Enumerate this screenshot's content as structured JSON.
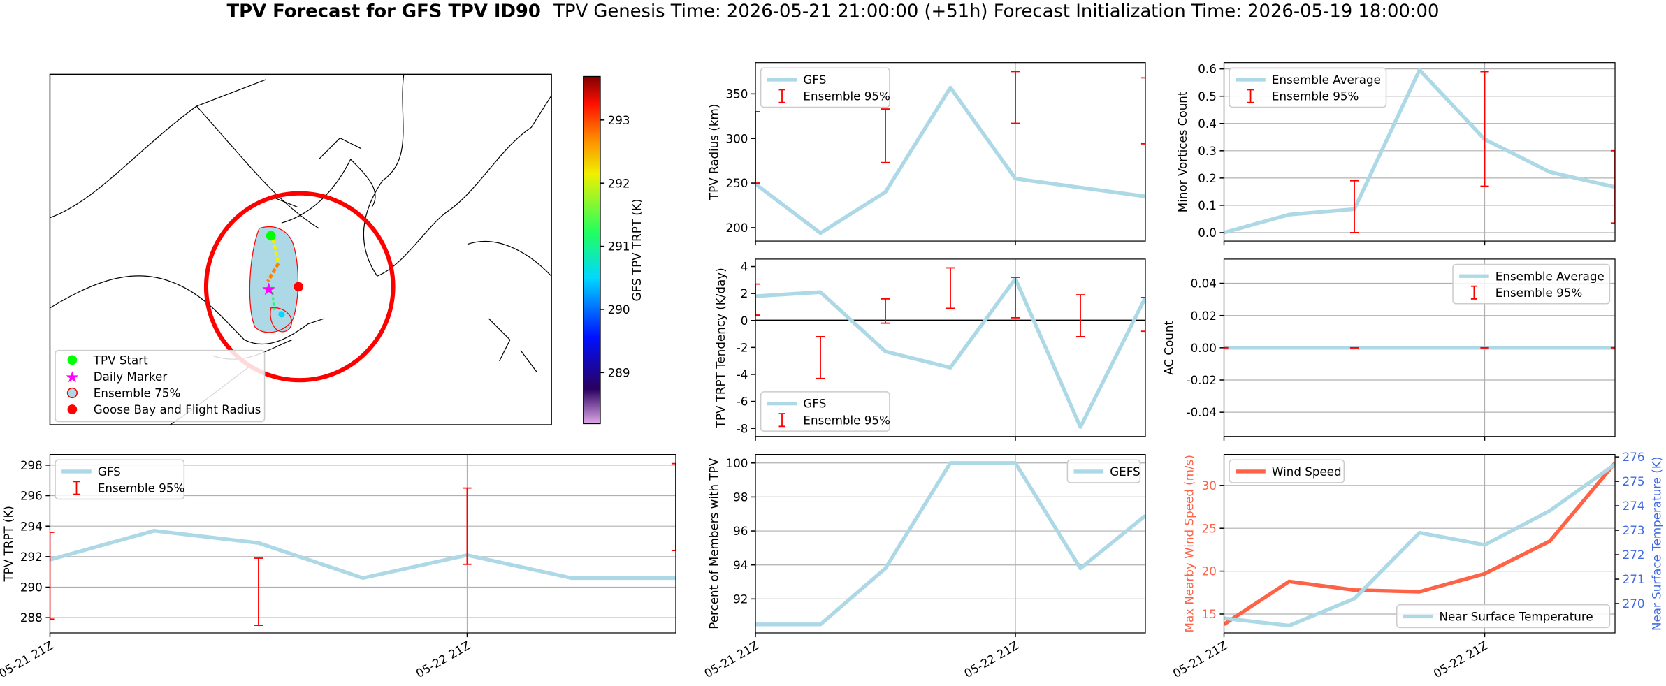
{
  "title": "TPV Forecast for GFS TPV ID90",
  "subtitle": "TPV Genesis Time: 2026-05-21 21:00:00 (+51h)   Forecast Initialization Time: 2026-05-19 18:00:00",
  "chart_data": [
    {
      "type": "map",
      "colorbar": {
        "label": "GFS TPV TRPT (K)",
        "lim": [
          288.19,
          293.69
        ],
        "ticks": [
          289,
          290,
          291,
          292,
          293
        ]
      },
      "legend_entries": [
        {
          "name": "TPV Start",
          "color": "#00ff00",
          "marker": "circle"
        },
        {
          "name": "Daily Marker",
          "color": "#ff00ff",
          "marker": "star"
        },
        {
          "name": "Ensemble 75%",
          "color": "#add8e6",
          "edge": "#ff0000",
          "marker": "circle"
        },
        {
          "name": "Goose Bay and Flight Radius",
          "color": "#ff0000",
          "marker": "circle"
        }
      ]
    },
    {
      "type": "line",
      "ylabel": "TPV Radius (km)",
      "xlim": [
        0,
        6
      ],
      "xticks": [
        0,
        4
      ],
      "ylim": [
        185,
        385
      ],
      "yticks": [
        200,
        250,
        300,
        350
      ],
      "grid": "x",
      "legend": "upper left",
      "series": [
        {
          "name": "GFS",
          "color": "#add8e6",
          "values": [
            249,
            194,
            240,
            357,
            255,
            245,
            235
          ]
        },
        {
          "name": "Ensemble 95%",
          "type": "errorbar",
          "color": "#ff0000",
          "low": [
            250,
            null,
            273,
            null,
            317,
            null,
            294
          ],
          "high": [
            330,
            null,
            333,
            null,
            375,
            null,
            368
          ]
        }
      ]
    },
    {
      "type": "line",
      "ylabel": "Minor Vortices Count",
      "xlim": [
        0,
        6
      ],
      "xticks": [
        0,
        4
      ],
      "ylim": [
        -0.031,
        0.623
      ],
      "yticks": [
        {
          "value": 0,
          "label": "0.0"
        },
        0.1,
        0.2,
        0.3,
        0.4,
        0.5,
        0.6
      ],
      "grid": true,
      "legend": "upper left",
      "series": [
        {
          "name": "Ensemble Average",
          "color": "#add8e6",
          "values": [
            0.0,
            0.066,
            0.086,
            0.596,
            0.342,
            0.222,
            0.167
          ]
        },
        {
          "name": "Ensemble 95%",
          "type": "errorbar",
          "color": "#ff0000",
          "low": [
            null,
            null,
            0.0,
            null,
            0.17,
            null,
            0.035
          ],
          "high": [
            null,
            null,
            0.19,
            null,
            0.59,
            null,
            0.3
          ]
        }
      ]
    },
    {
      "type": "line",
      "ylabel": "TPV TRPT Tendency (K/day)",
      "xlim": [
        0,
        6
      ],
      "xticks": [
        0,
        4
      ],
      "ylim": [
        -8.6,
        4.55
      ],
      "yticks": [
        4,
        2,
        0,
        -2,
        -4,
        -6,
        -8
      ],
      "grid": "x",
      "hline": 0,
      "legend": "lower left",
      "series": [
        {
          "name": "GFS",
          "color": "#add8e6",
          "values": [
            1.8,
            2.1,
            -2.3,
            -3.5,
            3.1,
            -7.9,
            1.7
          ]
        },
        {
          "name": "Ensemble 95%",
          "type": "errorbar",
          "color": "#ff0000",
          "low": [
            0.4,
            -4.3,
            -0.2,
            0.9,
            0.2,
            -1.2,
            -0.8
          ],
          "high": [
            2.7,
            -1.2,
            1.6,
            3.9,
            3.2,
            1.9,
            1.7
          ]
        }
      ]
    },
    {
      "type": "line",
      "ylabel": "AC Count",
      "xlim": [
        0,
        6
      ],
      "xticks": [
        0,
        4
      ],
      "ylim": [
        -0.055,
        0.055
      ],
      "yticks": [
        0.04,
        0.02,
        {
          "value": 0,
          "label": "0.00"
        },
        -0.02,
        -0.04
      ],
      "grid": true,
      "legend": "upper right",
      "series": [
        {
          "name": "Ensemble Average",
          "color": "#add8e6",
          "values": [
            0,
            0,
            0,
            0,
            0,
            0,
            0
          ]
        },
        {
          "name": "Ensemble 95%",
          "type": "errorbar",
          "color": "#ff0000",
          "low": [
            0,
            null,
            0,
            null,
            0,
            null,
            0
          ],
          "high": [
            0,
            null,
            0,
            null,
            0,
            null,
            0
          ]
        }
      ]
    },
    {
      "type": "line",
      "ylabel": "TPV TRPT (K)",
      "xlim": [
        0,
        6
      ],
      "xticks": [
        {
          "value": 0,
          "label": "05-21 21Z"
        },
        {
          "value": 4,
          "label": "05-22 21Z"
        }
      ],
      "ylim": [
        287.0,
        298.7
      ],
      "yticks": [
        288,
        290,
        292,
        294,
        296,
        298
      ],
      "grid": true,
      "legend": "upper left",
      "series": [
        {
          "name": "GFS",
          "color": "#add8e6",
          "values": [
            291.8,
            293.7,
            292.9,
            290.6,
            292.1,
            290.6,
            290.6
          ]
        },
        {
          "name": "Ensemble 95%",
          "type": "errorbar",
          "color": "#ff0000",
          "low": [
            287.9,
            null,
            287.5,
            null,
            291.5,
            null,
            292.4
          ],
          "high": [
            293.6,
            null,
            291.9,
            null,
            296.5,
            null,
            298.1
          ]
        }
      ]
    },
    {
      "type": "line",
      "ylabel": "Percent of Members with TPV",
      "xlim": [
        0,
        6
      ],
      "xticks": [
        {
          "value": 0,
          "label": "05-21 21Z"
        },
        {
          "value": 4,
          "label": "05-22 21Z"
        }
      ],
      "ylim": [
        90.0,
        100.5
      ],
      "yticks": [
        92,
        94,
        96,
        98,
        100
      ],
      "grid": true,
      "legend": "upper right",
      "series": [
        {
          "name": "GEFS",
          "color": "#add8e6",
          "values": [
            90.5,
            90.5,
            93.8,
            100,
            100,
            93.8,
            96.9
          ]
        }
      ]
    },
    {
      "type": "line",
      "ylabel": "Max Nearby Wind Speed (m/s)",
      "ylabel_color": "#ff6347",
      "y2label": "Near Surface Temperature (K)",
      "y2label_color": "#4169e1",
      "xlim": [
        0,
        6
      ],
      "xticks": [
        {
          "value": 0,
          "label": "05-21 21Z"
        },
        {
          "value": 4,
          "label": "05-22 21Z"
        }
      ],
      "ylim": [
        12.8,
        33.6
      ],
      "yticks": [
        15,
        20,
        25,
        30
      ],
      "y2lim": [
        268.8,
        276.1
      ],
      "y2ticks": [
        270,
        271,
        272,
        273,
        274,
        275,
        276
      ],
      "grid": true,
      "series": [
        {
          "name": "Wind Speed",
          "color": "#ff6347",
          "legend": "upper left",
          "values": [
            13.8,
            18.8,
            17.8,
            17.6,
            19.7,
            23.5,
            32.6
          ]
        },
        {
          "name": "Near Surface Temperature",
          "color": "#add8e6",
          "axis": "y2",
          "legend": "lower right",
          "values": [
            269.4,
            269.1,
            270.2,
            272.9,
            272.4,
            273.8,
            275.7
          ]
        }
      ]
    }
  ]
}
